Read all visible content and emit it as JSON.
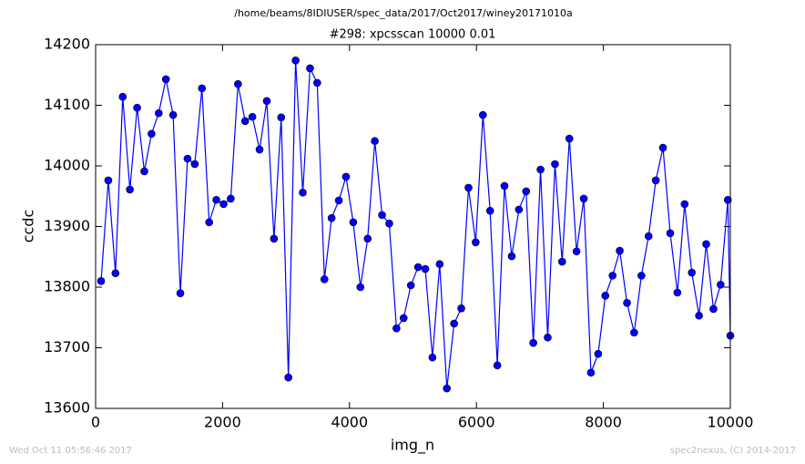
{
  "chart_data": {
    "type": "line",
    "suptitle": "/home/beams/8IDIUSER/spec_data/2017/Oct2017/winey20171010a",
    "title": "#298: xpcsscan 10000 0.01",
    "xlabel": "img_n",
    "ylabel": "ccdc",
    "footer_left": "Wed Oct 11 05:56:46 2017",
    "footer_right": "spec2nexus, (C) 2014-2017",
    "x": [
      86,
      200,
      313,
      427,
      540,
      654,
      767,
      881,
      994,
      1108,
      1221,
      1335,
      1448,
      1562,
      1675,
      1789,
      1902,
      2016,
      2129,
      2243,
      2356,
      2470,
      2583,
      2697,
      2810,
      2924,
      3037,
      3151,
      3264,
      3378,
      3491,
      3605,
      3718,
      3832,
      3945,
      4059,
      4172,
      4286,
      4399,
      4513,
      4626,
      4740,
      4853,
      4967,
      5080,
      5194,
      5307,
      5421,
      5534,
      5648,
      5761,
      5875,
      5988,
      6102,
      6215,
      6329,
      6442,
      6556,
      6669,
      6783,
      6896,
      7010,
      7123,
      7237,
      7350,
      7464,
      7577,
      7691,
      7804,
      7918,
      8031,
      8145,
      8258,
      8372,
      8485,
      8599,
      8712,
      8826,
      8939,
      9053,
      9166,
      9280,
      9393,
      9507,
      9620,
      9734,
      9847,
      9961,
      10000
    ],
    "series": [
      {
        "name": "ccdc",
        "color": "#0000ff",
        "values": [
          13810,
          13976,
          13823,
          14114,
          13961,
          14096,
          13991,
          14053,
          14087,
          14143,
          14084,
          13790,
          14012,
          14003,
          14128,
          13907,
          13944,
          13937,
          13946,
          14135,
          14074,
          14081,
          14027,
          14107,
          13880,
          14080,
          13651,
          14174,
          13956,
          14161,
          14137,
          13813,
          13914,
          13943,
          13982,
          13907,
          13800,
          13880,
          14041,
          13919,
          13905,
          13732,
          13749,
          13803,
          13833,
          13830,
          13684,
          13838,
          13633,
          13740,
          13765,
          13964,
          13874,
          14084,
          13926,
          13671,
          13967,
          13851,
          13928,
          13958,
          13708,
          13994,
          13717,
          14003,
          13842,
          14045,
          13859,
          13946,
          13659,
          13690,
          13786,
          13819,
          13860,
          13774,
          13725,
          13819,
          13884,
          13976,
          14030,
          13889,
          13791,
          13937,
          13824,
          13753,
          13871,
          13764,
          13804,
          13944,
          13720
        ]
      }
    ],
    "xlim": [
      0,
      10000
    ],
    "xticks": [
      0,
      2000,
      4000,
      6000,
      8000,
      10000
    ],
    "ylim": [
      13600,
      14200
    ],
    "yticks": [
      13600,
      13700,
      13800,
      13900,
      14000,
      14100,
      14200
    ]
  }
}
